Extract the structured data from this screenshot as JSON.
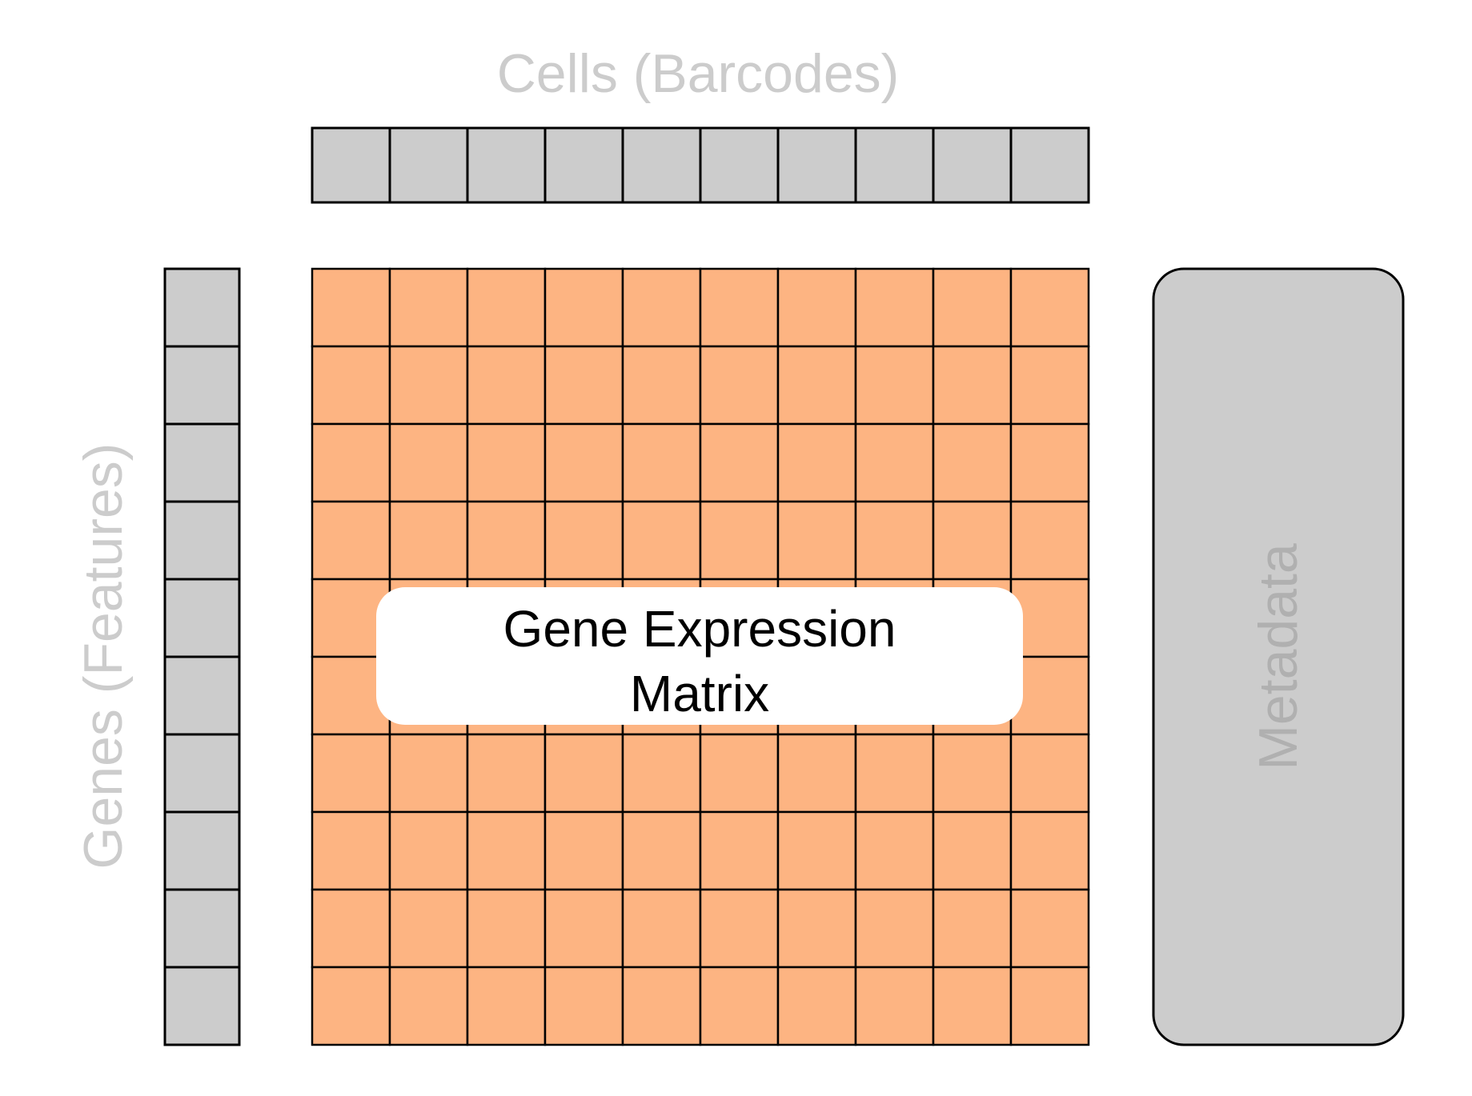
{
  "diagram": {
    "cells_label": "Cells (Barcodes)",
    "genes_label": "Genes (Features)",
    "metadata_label": "Metadata",
    "matrix_label_line1": "Gene Expression",
    "matrix_label_line2": "Matrix",
    "grid_rows": 10,
    "grid_cols": 10
  },
  "colors": {
    "matrix_fill": "#fdb482",
    "box_fill": "#cccccc",
    "label_color": "#cccccc",
    "metadata_text_color": "#b0b0b0"
  }
}
